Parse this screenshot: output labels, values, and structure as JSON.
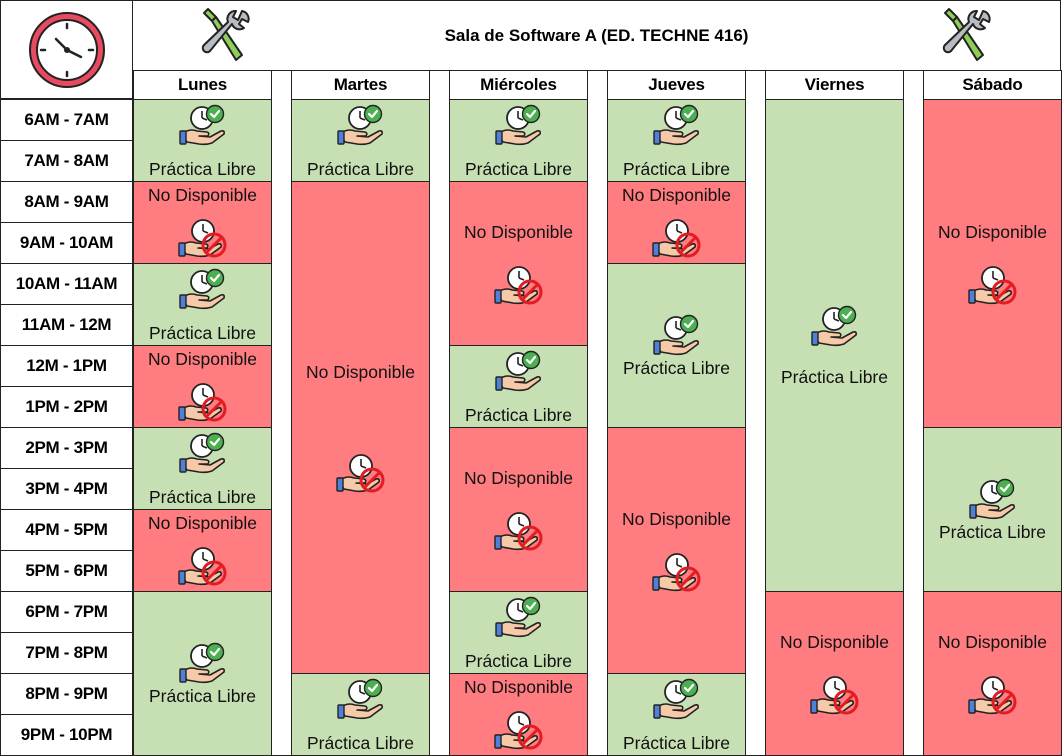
{
  "title": "Sala de Software A (ED. TECHNE 416)",
  "days": [
    "Lunes",
    "Martes",
    "Miércoles",
    "Jueves",
    "Viernes",
    "Sábado"
  ],
  "times": [
    "6AM - 7AM",
    "7AM - 8AM",
    "8AM - 9AM",
    "9AM - 10AM",
    "10AM - 11AM",
    "11AM - 12M",
    "12M - 1PM",
    "1PM - 2PM",
    "2PM - 3PM",
    "3PM - 4PM",
    "4PM - 5PM",
    "5PM - 6PM",
    "6PM - 7PM",
    "7PM - 8PM",
    "8PM - 9PM",
    "9PM - 10PM"
  ],
  "status_labels": {
    "free": "Práctica Libre",
    "busy": "No Disponible"
  },
  "colors": {
    "free": "#c6e0b4",
    "busy": "#ff7c80"
  },
  "icons": {
    "header": "clock-icon",
    "title_side": "tools-icon",
    "free": "hand-clock-check-icon",
    "busy": "hand-clock-blocked-icon"
  },
  "schedule": [
    [
      {
        "status": "free",
        "start": 0,
        "end": 2
      },
      {
        "status": "busy",
        "start": 2,
        "end": 4
      },
      {
        "status": "free",
        "start": 4,
        "end": 6
      },
      {
        "status": "busy",
        "start": 6,
        "end": 8
      },
      {
        "status": "free",
        "start": 8,
        "end": 10
      },
      {
        "status": "busy",
        "start": 10,
        "end": 12
      },
      {
        "status": "free",
        "start": 12,
        "end": 16
      }
    ],
    [
      {
        "status": "free",
        "start": 0,
        "end": 2
      },
      {
        "status": "busy",
        "start": 2,
        "end": 14
      },
      {
        "status": "free",
        "start": 14,
        "end": 16
      }
    ],
    [
      {
        "status": "free",
        "start": 0,
        "end": 2
      },
      {
        "status": "busy",
        "start": 2,
        "end": 6
      },
      {
        "status": "free",
        "start": 6,
        "end": 8
      },
      {
        "status": "busy",
        "start": 8,
        "end": 12
      },
      {
        "status": "free",
        "start": 12,
        "end": 14
      },
      {
        "status": "busy",
        "start": 14,
        "end": 16
      }
    ],
    [
      {
        "status": "free",
        "start": 0,
        "end": 2
      },
      {
        "status": "busy",
        "start": 2,
        "end": 4
      },
      {
        "status": "free",
        "start": 4,
        "end": 8
      },
      {
        "status": "busy",
        "start": 8,
        "end": 14
      },
      {
        "status": "free",
        "start": 14,
        "end": 16
      }
    ],
    [
      {
        "status": "free",
        "start": 0,
        "end": 12
      },
      {
        "status": "busy",
        "start": 12,
        "end": 16
      }
    ],
    [
      {
        "status": "busy",
        "start": 0,
        "end": 8
      },
      {
        "status": "free",
        "start": 8,
        "end": 12
      },
      {
        "status": "busy",
        "start": 12,
        "end": 16
      }
    ]
  ]
}
